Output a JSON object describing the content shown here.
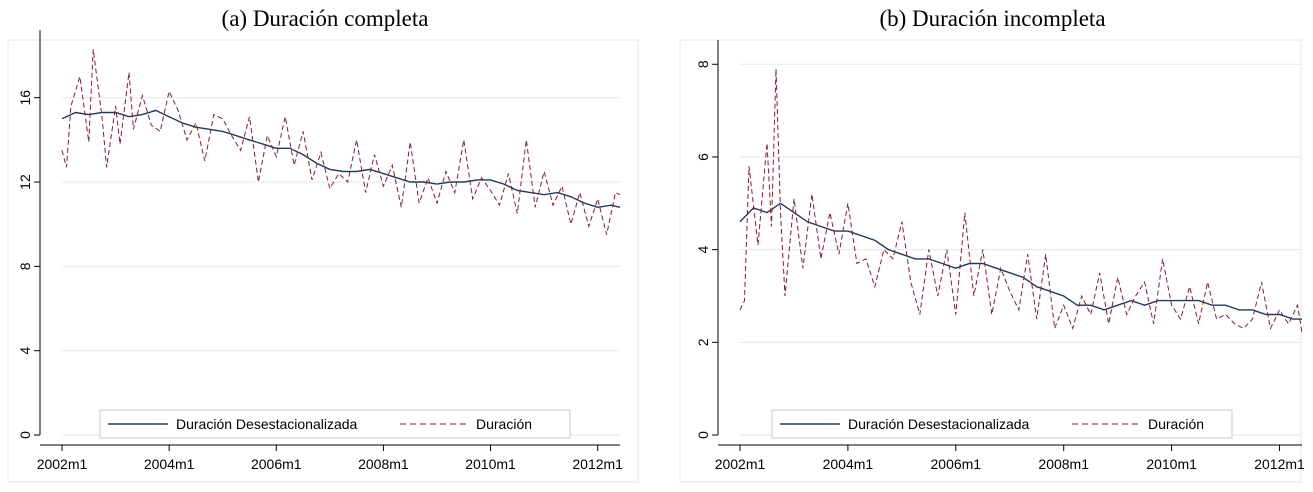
{
  "chart_data": [
    {
      "type": "line",
      "title": "(a) Duración completa",
      "xlabel": "",
      "ylabel": "",
      "x_ticks": [
        "2002m1",
        "2004m1",
        "2006m1",
        "2008m1",
        "2010m1",
        "2012m1"
      ],
      "y_ticks": [
        0,
        4,
        8,
        12,
        16
      ],
      "xlim": [
        "2002m1",
        "2012m6"
      ],
      "ylim": [
        0,
        18.5
      ],
      "grid": true,
      "legend_position": "bottom",
      "series": [
        {
          "name": "Duración Desestacionalizada",
          "color": "#1f3b5a",
          "style": "solid",
          "x": [
            "2002m1",
            "2002m4",
            "2002m7",
            "2002m10",
            "2003m1",
            "2003m4",
            "2003m7",
            "2003m10",
            "2004m1",
            "2004m4",
            "2004m7",
            "2004m10",
            "2005m1",
            "2005m4",
            "2005m7",
            "2005m10",
            "2006m1",
            "2006m4",
            "2006m7",
            "2006m10",
            "2007m1",
            "2007m4",
            "2007m7",
            "2007m10",
            "2008m1",
            "2008m4",
            "2008m7",
            "2008m10",
            "2009m1",
            "2009m4",
            "2009m7",
            "2009m10",
            "2010m1",
            "2010m4",
            "2010m7",
            "2010m10",
            "2011m1",
            "2011m4",
            "2011m7",
            "2011m10",
            "2012m1",
            "2012m4",
            "2012m6"
          ],
          "values": [
            15.0,
            15.3,
            15.2,
            15.3,
            15.3,
            15.1,
            15.2,
            15.4,
            15.1,
            14.8,
            14.6,
            14.5,
            14.4,
            14.2,
            14.0,
            13.8,
            13.6,
            13.6,
            13.3,
            12.9,
            12.6,
            12.5,
            12.5,
            12.6,
            12.4,
            12.2,
            12.0,
            12.0,
            11.9,
            12.0,
            12.0,
            12.1,
            12.1,
            11.9,
            11.6,
            11.5,
            11.4,
            11.5,
            11.3,
            11.0,
            10.8,
            10.9,
            10.8
          ]
        },
        {
          "name": "Duración",
          "color": "#8b1a2b",
          "style": "dashed",
          "x": [
            "2002m1",
            "2002m2",
            "2002m3",
            "2002m5",
            "2002m7",
            "2002m8",
            "2002m10",
            "2002m11",
            "2003m1",
            "2003m2",
            "2003m4",
            "2003m5",
            "2003m7",
            "2003m9",
            "2003m11",
            "2004m1",
            "2004m3",
            "2004m5",
            "2004m7",
            "2004m9",
            "2004m11",
            "2005m1",
            "2005m3",
            "2005m5",
            "2005m7",
            "2005m9",
            "2005m11",
            "2006m1",
            "2006m3",
            "2006m5",
            "2006m7",
            "2006m9",
            "2006m11",
            "2007m1",
            "2007m3",
            "2007m5",
            "2007m7",
            "2007m9",
            "2007m11",
            "2008m1",
            "2008m3",
            "2008m5",
            "2008m7",
            "2008m9",
            "2008m11",
            "2009m1",
            "2009m3",
            "2009m5",
            "2009m7",
            "2009m9",
            "2009m11",
            "2010m1",
            "2010m3",
            "2010m5",
            "2010m7",
            "2010m9",
            "2010m11",
            "2011m1",
            "2011m3",
            "2011m5",
            "2011m7",
            "2011m9",
            "2011m11",
            "2012m1",
            "2012m3",
            "2012m5",
            "2012m6"
          ],
          "values": [
            13.5,
            12.7,
            15.6,
            17.0,
            13.9,
            18.3,
            15.0,
            12.7,
            15.6,
            13.8,
            17.2,
            14.5,
            16.1,
            14.7,
            14.4,
            16.3,
            15.4,
            14.0,
            14.8,
            13.0,
            15.2,
            15.0,
            14.2,
            13.5,
            15.1,
            12.0,
            14.2,
            13.2,
            15.1,
            12.8,
            14.4,
            12.1,
            13.4,
            11.7,
            12.4,
            12.0,
            14.0,
            11.5,
            13.3,
            11.8,
            12.8,
            10.8,
            13.9,
            11.0,
            12.2,
            11.0,
            12.5,
            11.5,
            14.0,
            11.2,
            12.2,
            11.6,
            10.9,
            12.4,
            10.5,
            14.0,
            10.8,
            12.5,
            10.9,
            11.8,
            10.0,
            11.5,
            9.9,
            11.2,
            9.5,
            11.5,
            11.4
          ]
        }
      ]
    },
    {
      "type": "line",
      "title": "(b) Duración incompleta",
      "xlabel": "",
      "ylabel": "",
      "x_ticks": [
        "2002m1",
        "2004m1",
        "2006m1",
        "2008m1",
        "2010m1",
        "2012m1"
      ],
      "y_ticks": [
        0,
        2,
        4,
        6,
        8
      ],
      "xlim": [
        "2002m1",
        "2012m6"
      ],
      "ylim": [
        0,
        8.2
      ],
      "grid": true,
      "legend_position": "bottom",
      "series": [
        {
          "name": "Duración Desestacionalizada",
          "color": "#1f3b5a",
          "style": "solid",
          "x": [
            "2002m1",
            "2002m4",
            "2002m7",
            "2002m10",
            "2003m1",
            "2003m4",
            "2003m7",
            "2003m10",
            "2004m1",
            "2004m4",
            "2004m7",
            "2004m10",
            "2005m1",
            "2005m4",
            "2005m7",
            "2005m10",
            "2006m1",
            "2006m4",
            "2006m7",
            "2006m10",
            "2007m1",
            "2007m4",
            "2007m7",
            "2007m10",
            "2008m1",
            "2008m4",
            "2008m7",
            "2008m10",
            "2009m1",
            "2009m4",
            "2009m7",
            "2009m10",
            "2010m1",
            "2010m4",
            "2010m7",
            "2010m10",
            "2011m1",
            "2011m4",
            "2011m7",
            "2011m10",
            "2012m1",
            "2012m4",
            "2012m6"
          ],
          "values": [
            4.6,
            4.9,
            4.8,
            5.0,
            4.8,
            4.6,
            4.5,
            4.4,
            4.4,
            4.3,
            4.2,
            4.0,
            3.9,
            3.8,
            3.8,
            3.7,
            3.6,
            3.7,
            3.7,
            3.6,
            3.5,
            3.4,
            3.2,
            3.1,
            3.0,
            2.8,
            2.8,
            2.7,
            2.8,
            2.9,
            2.8,
            2.9,
            2.9,
            2.9,
            2.9,
            2.8,
            2.8,
            2.7,
            2.7,
            2.6,
            2.6,
            2.5,
            2.5
          ]
        },
        {
          "name": "Duración",
          "color": "#8b1a2b",
          "style": "dashed",
          "x": [
            "2002m1",
            "2002m2",
            "2002m3",
            "2002m5",
            "2002m7",
            "2002m8",
            "2002m9",
            "2002m10",
            "2002m11",
            "2003m1",
            "2003m3",
            "2003m5",
            "2003m7",
            "2003m9",
            "2003m11",
            "2004m1",
            "2004m3",
            "2004m5",
            "2004m7",
            "2004m9",
            "2004m11",
            "2005m1",
            "2005m3",
            "2005m5",
            "2005m7",
            "2005m9",
            "2005m11",
            "2006m1",
            "2006m3",
            "2006m5",
            "2006m7",
            "2006m9",
            "2006m11",
            "2007m1",
            "2007m3",
            "2007m5",
            "2007m7",
            "2007m9",
            "2007m11",
            "2008m1",
            "2008m3",
            "2008m5",
            "2008m7",
            "2008m9",
            "2008m11",
            "2009m1",
            "2009m3",
            "2009m5",
            "2009m7",
            "2009m9",
            "2009m11",
            "2010m1",
            "2010m3",
            "2010m5",
            "2010m7",
            "2010m9",
            "2010m11",
            "2011m1",
            "2011m3",
            "2011m5",
            "2011m7",
            "2011m9",
            "2011m11",
            "2012m1",
            "2012m3",
            "2012m5",
            "2012m6"
          ],
          "values": [
            2.7,
            2.9,
            5.8,
            4.1,
            6.3,
            4.5,
            7.9,
            4.8,
            3.0,
            5.1,
            3.6,
            5.2,
            3.8,
            4.8,
            3.9,
            5.0,
            3.7,
            3.8,
            3.2,
            4.0,
            3.8,
            4.6,
            3.3,
            2.6,
            4.0,
            3.0,
            4.0,
            2.6,
            4.8,
            3.0,
            4.0,
            2.6,
            3.6,
            3.1,
            2.7,
            3.9,
            2.5,
            3.9,
            2.3,
            2.8,
            2.3,
            3.0,
            2.6,
            3.5,
            2.4,
            3.4,
            2.6,
            3.0,
            3.3,
            2.4,
            3.8,
            2.8,
            2.5,
            3.2,
            2.4,
            3.3,
            2.5,
            2.6,
            2.4,
            2.3,
            2.5,
            3.3,
            2.3,
            2.7,
            2.4,
            2.8,
            2.2
          ]
        }
      ]
    }
  ]
}
